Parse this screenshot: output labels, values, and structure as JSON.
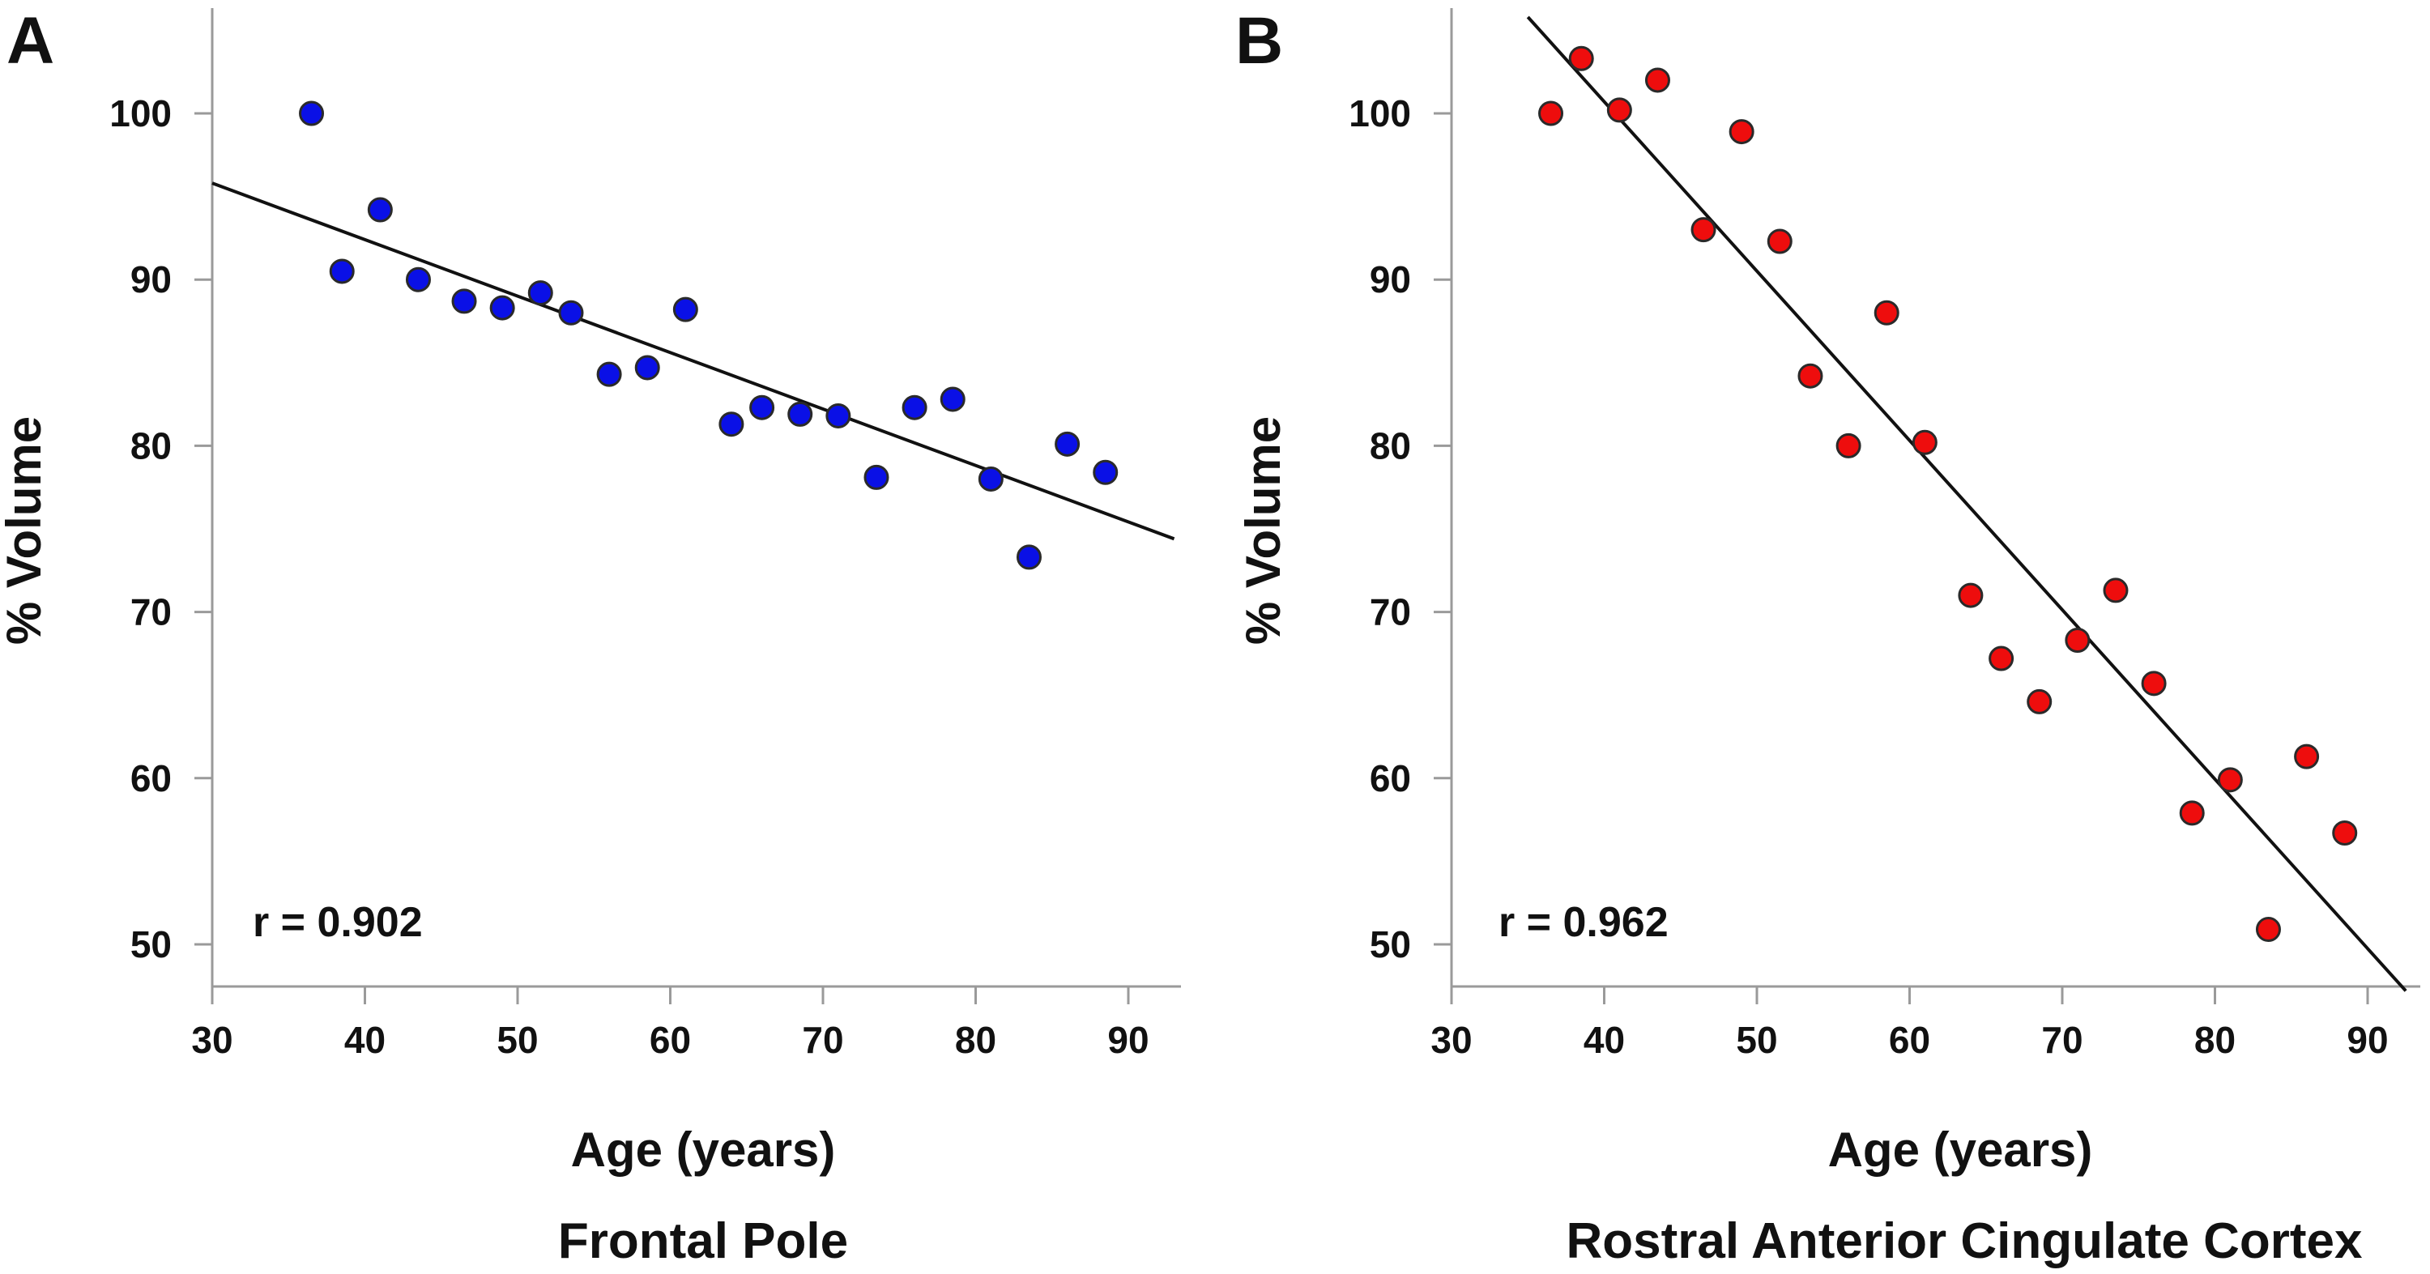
{
  "chart_data": [
    {
      "type": "scatter",
      "panel_label": "A",
      "caption": "Frontal Pole",
      "xlabel": "Age (years)",
      "ylabel": "% Volume",
      "annotation": "r = 0.902",
      "xlim": [
        30,
        93
      ],
      "ylim": [
        47,
        106
      ],
      "xticks": [
        30,
        40,
        50,
        60,
        70,
        80,
        90
      ],
      "yticks": [
        50,
        60,
        70,
        80,
        90,
        100
      ],
      "grid": false,
      "point_color": "#0a10e6",
      "fit_line": {
        "x": [
          30,
          93
        ],
        "y": [
          95.8,
          74.4
        ]
      },
      "x": [
        36.5,
        38.5,
        41,
        43.5,
        46.5,
        49,
        51.5,
        53.5,
        56,
        58.5,
        61,
        64,
        66,
        68.5,
        71,
        73.5,
        76,
        78.5,
        81,
        83.5,
        86,
        88.5
      ],
      "y": [
        100,
        90.5,
        94.2,
        90,
        88.7,
        88.3,
        89.2,
        88,
        84.3,
        84.7,
        88.2,
        81.3,
        82.3,
        81.9,
        81.8,
        78.1,
        82.3,
        82.8,
        78,
        73.3,
        80.1,
        78.4
      ]
    },
    {
      "type": "scatter",
      "panel_label": "B",
      "caption": "Rostral Anterior Cingulate Cortex",
      "xlabel": "Age (years)",
      "ylabel": "% Volume",
      "annotation": "r = 0.962",
      "xlim": [
        30,
        93
      ],
      "ylim": [
        47,
        106
      ],
      "xticks": [
        30,
        40,
        50,
        60,
        70,
        80,
        90
      ],
      "yticks": [
        50,
        60,
        70,
        80,
        90,
        100
      ],
      "grid": false,
      "point_color": "#ee0d0d",
      "fit_line": {
        "x": [
          35,
          92.5
        ],
        "y": [
          105.8,
          47.2
        ]
      },
      "x": [
        36.5,
        38.5,
        41,
        43.5,
        46.5,
        49,
        51.5,
        53.5,
        56,
        58.5,
        61,
        64,
        66,
        68.5,
        71,
        73.5,
        76,
        78.5,
        81,
        83.5,
        86,
        88.5
      ],
      "y": [
        100,
        103.3,
        100.2,
        102,
        93,
        98.9,
        92.3,
        84.2,
        80,
        88,
        80.2,
        71,
        67.2,
        64.6,
        68.3,
        71.3,
        65.7,
        57.9,
        59.9,
        50.9,
        61.3,
        56.7
      ]
    }
  ]
}
